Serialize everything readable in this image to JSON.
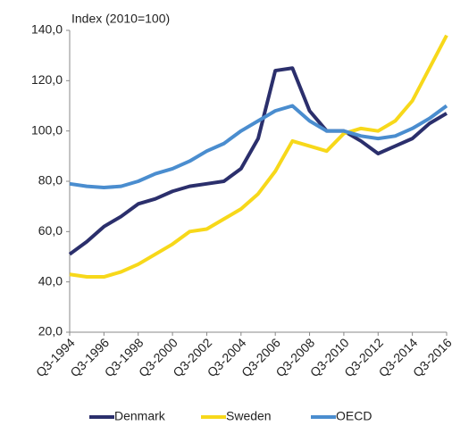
{
  "chart_data": {
    "type": "line",
    "y_label": "Index (2010=100)",
    "categories": [
      "Q3-1994",
      null,
      "Q3-1996",
      null,
      "Q3-1998",
      null,
      "Q3-2000",
      null,
      "Q3-2002",
      null,
      "Q3-2004",
      null,
      "Q3-2006",
      null,
      "Q3-2008",
      null,
      "Q3-2010",
      null,
      "Q3-2012",
      null,
      "Q3-2014",
      null,
      "Q3-2016"
    ],
    "series": [
      {
        "name": "Denmark",
        "color": "#2b2f6c",
        "values": [
          51,
          56,
          62,
          66,
          71,
          73,
          76,
          78,
          79,
          80,
          85,
          97,
          124,
          125,
          108,
          100,
          100,
          96,
          91,
          94,
          97,
          103,
          107
        ]
      },
      {
        "name": "Sweden",
        "color": "#f7d81a",
        "values": [
          43,
          42,
          42,
          44,
          47,
          51,
          55,
          60,
          61,
          65,
          69,
          75,
          84,
          96,
          94,
          92,
          99,
          101,
          100,
          104,
          112,
          125,
          138
        ]
      },
      {
        "name": "OECD",
        "color": "#4a8dcf",
        "values": [
          79,
          78,
          77.5,
          78,
          80,
          83,
          85,
          88,
          92,
          95,
          100,
          104,
          108,
          110,
          104,
          100,
          100,
          98,
          97,
          98,
          101,
          105,
          110
        ]
      }
    ],
    "ylim": [
      20,
      140
    ],
    "yticks": [
      {
        "value": 20,
        "label": "20,0"
      },
      {
        "value": 40,
        "label": "40,0"
      },
      {
        "value": 60,
        "label": "60,0"
      },
      {
        "value": 80,
        "label": "80,0"
      },
      {
        "value": 100,
        "label": "100,0"
      },
      {
        "value": 120,
        "label": "120,0"
      },
      {
        "value": 140,
        "label": "140,0"
      }
    ],
    "legend": "bottom",
    "grid": false
  }
}
